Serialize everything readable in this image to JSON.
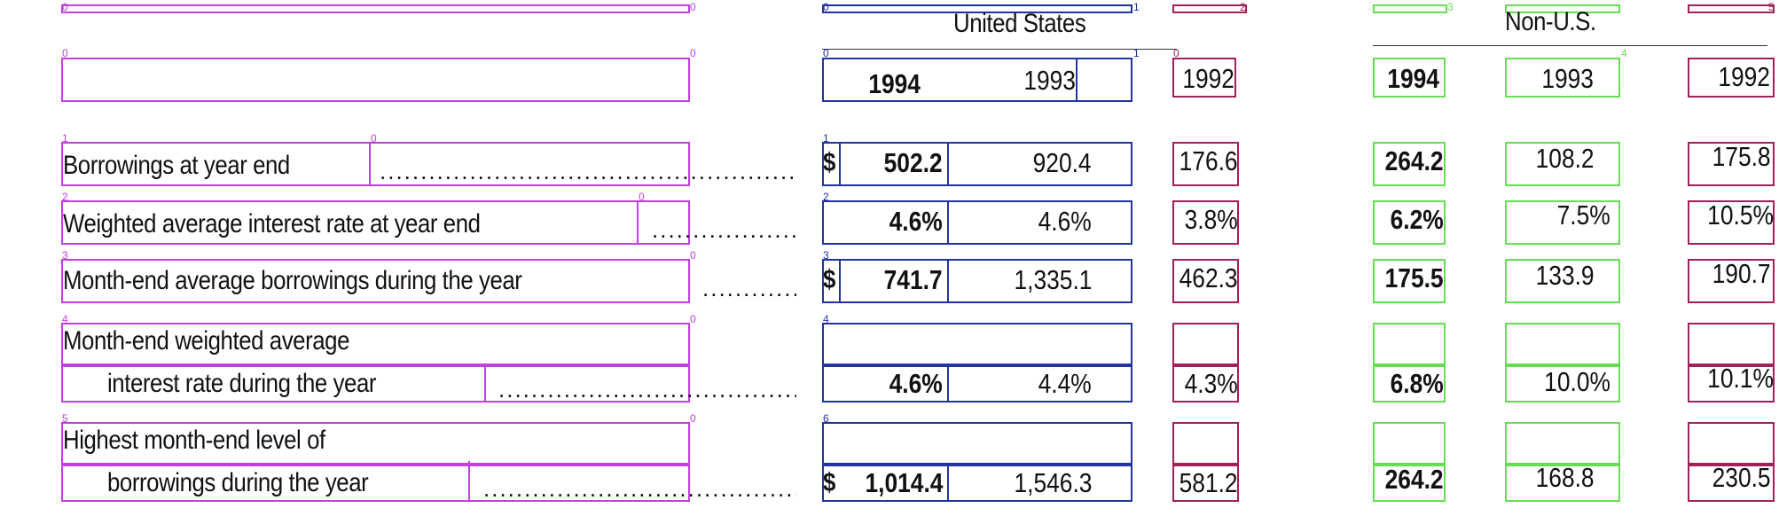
{
  "headers": {
    "us": "United States",
    "nonus": "Non-U.S."
  },
  "years": {
    "us_1994": "1994",
    "us_1993": "1993",
    "us_1992": "1992",
    "nonus_1994": "1994",
    "nonus_1993": "1993",
    "nonus_1992": "1992"
  },
  "rows": [
    {
      "label1": "Borrowings at year end",
      "label2": "",
      "dollar": "$",
      "us_1994": "502.2",
      "us_1993": "920.4",
      "us_1992": "176.6",
      "nonus_1994": "264.2",
      "nonus_1993": "108.2",
      "nonus_1992": "175.8"
    },
    {
      "label1": "Weighted average interest rate at year end",
      "label2": "",
      "dollar": "",
      "us_1994": "4.6%",
      "us_1993": "4.6%",
      "us_1992": "3.8%",
      "nonus_1994": "6.2%",
      "nonus_1993": "7.5%",
      "nonus_1992": "10.5%"
    },
    {
      "label1": "Month-end average borrowings during the year",
      "label2": "",
      "dollar": "$",
      "us_1994": "741.7",
      "us_1993": "1,335.1",
      "us_1992": "462.3",
      "nonus_1994": "175.5",
      "nonus_1993": "133.9",
      "nonus_1992": "190.7"
    },
    {
      "label1": "Month-end weighted average",
      "label2": "interest rate during the year",
      "dollar": "",
      "us_1994": "4.6%",
      "us_1993": "4.4%",
      "us_1992": "4.3%",
      "nonus_1994": "6.8%",
      "nonus_1993": "10.0%",
      "nonus_1992": "10.1%"
    },
    {
      "label1": "Highest month-end level of",
      "label2": "borrowings during the year",
      "dollar": "$",
      "us_1994": "1,014.4",
      "us_1993": "1,546.3",
      "us_1992": "581.2",
      "nonus_1994": "264.2",
      "nonus_1993": "168.8",
      "nonus_1992": "230.5"
    }
  ],
  "box_indices": {
    "purple": [
      "0",
      "0",
      "1",
      "0",
      "2",
      "0",
      "3",
      "0",
      "4",
      "0",
      "5",
      "0",
      "6",
      "0",
      "7",
      "0"
    ],
    "blue": [
      "0",
      "1",
      "0",
      "0",
      "1",
      "1",
      "2",
      "2",
      "3",
      "3",
      "4",
      "5",
      "5",
      "6",
      "7",
      "7"
    ],
    "magenta": [
      "0",
      "2",
      "1",
      "2",
      "3",
      "4",
      "5",
      "6",
      "7"
    ],
    "green": [
      "0",
      "3",
      "1",
      "3",
      "2",
      "3",
      "4",
      "5",
      "6",
      "7"
    ],
    "green_mid": [
      "0",
      "4",
      "1",
      "4",
      "2",
      "4",
      "3",
      "4",
      "4",
      "4",
      "5",
      "4",
      "6",
      "4",
      "7",
      "4"
    ],
    "right": [
      "0",
      "5",
      "1",
      "5",
      "2",
      "5",
      "3",
      "5",
      "4",
      "5",
      "5",
      "6",
      "7"
    ]
  },
  "colors": {
    "labels": "#c040e0",
    "us": "#2233a0",
    "col1992": "#a0205a",
    "nonus": "#66dd55"
  },
  "leaders": {
    "dots": "............................................................................................................................"
  }
}
